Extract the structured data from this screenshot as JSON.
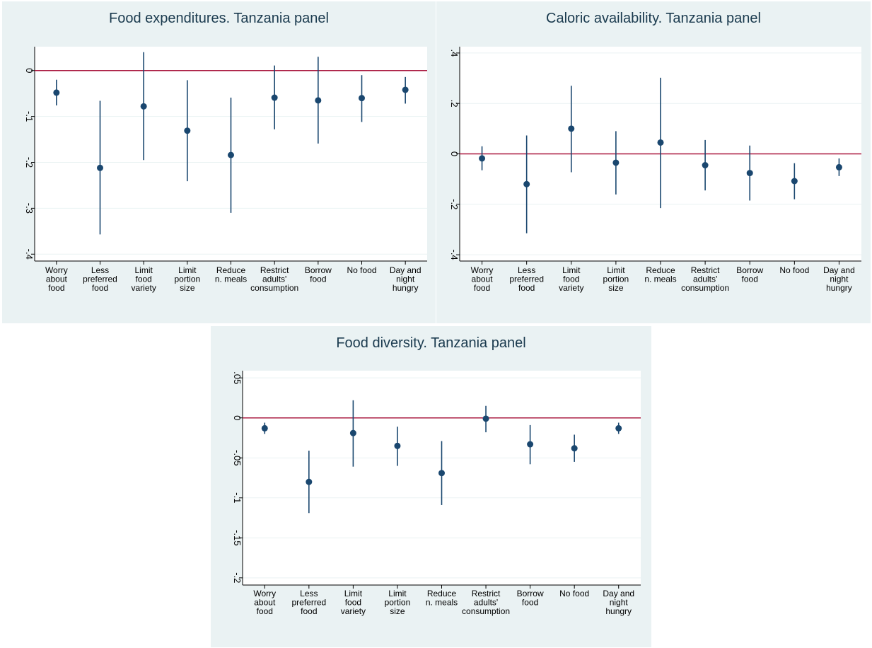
{
  "colors": {
    "panel_bg": "#eaf2f3",
    "plot_bg": "#ffffff",
    "marker": "#1a476f",
    "zero_line": "#a9183f",
    "grid": "#eaf2f3",
    "title": "#1a3a4e"
  },
  "chart_data": [
    {
      "type": "scatter",
      "subtype": "coefficient-plot",
      "title": "Food expenditures. Tanzania panel",
      "categories": [
        [
          "Worry",
          "about",
          "food"
        ],
        [
          "Less",
          "preferred",
          "food"
        ],
        [
          "Limit",
          "food",
          "variety"
        ],
        [
          "Limit",
          "portion",
          "size"
        ],
        [
          "Reduce",
          "n. meals"
        ],
        [
          "Restrict",
          "adults'",
          "consumption"
        ],
        [
          "Borrow",
          "food"
        ],
        [
          "No food"
        ],
        [
          "Day and",
          "night",
          "hungry"
        ]
      ],
      "estimates": [
        -0.048,
        -0.212,
        -0.078,
        -0.131,
        -0.184,
        -0.059,
        -0.065,
        -0.06,
        -0.042
      ],
      "ci_low": [
        -0.076,
        -0.357,
        -0.195,
        -0.241,
        -0.31,
        -0.128,
        -0.159,
        -0.112,
        -0.072
      ],
      "ci_high": [
        -0.02,
        -0.066,
        0.04,
        -0.021,
        -0.059,
        0.011,
        0.03,
        -0.01,
        -0.014
      ],
      "yticks": [
        0,
        -0.1,
        -0.2,
        -0.3,
        -0.4
      ],
      "ytick_labels": [
        "0",
        "-.1",
        "-.2",
        "-.3",
        "-.4"
      ],
      "ylim": [
        -0.415,
        0.052
      ],
      "reference_line": 0
    },
    {
      "type": "scatter",
      "subtype": "coefficient-plot",
      "title": "Caloric availability. Tanzania panel",
      "categories": [
        [
          "Worry",
          "about",
          "food"
        ],
        [
          "Less",
          "preferred",
          "food"
        ],
        [
          "Limit",
          "food",
          "variety"
        ],
        [
          "Limit",
          "portion",
          "size"
        ],
        [
          "Reduce",
          "n. meals"
        ],
        [
          "Restrict",
          "adults'",
          "consumption"
        ],
        [
          "Borrow",
          "food"
        ],
        [
          "No food"
        ],
        [
          "Day and",
          "night",
          "hungry"
        ]
      ],
      "estimates": [
        -0.018,
        -0.12,
        0.1,
        -0.035,
        0.045,
        -0.045,
        -0.076,
        -0.108,
        -0.053
      ],
      "ci_low": [
        -0.065,
        -0.315,
        -0.073,
        -0.161,
        -0.215,
        -0.145,
        -0.185,
        -0.18,
        -0.088
      ],
      "ci_high": [
        0.03,
        0.073,
        0.27,
        0.09,
        0.302,
        0.055,
        0.033,
        -0.037,
        -0.018
      ],
      "yticks": [
        0.4,
        0.2,
        0,
        -0.2,
        -0.4
      ],
      "ytick_labels": [
        ".4",
        ".2",
        "0",
        "-.2",
        "-.4"
      ],
      "ylim": [
        -0.425,
        0.425
      ],
      "reference_line": 0
    },
    {
      "type": "scatter",
      "subtype": "coefficient-plot",
      "title": "Food diversity. Tanzania panel",
      "categories": [
        [
          "Worry",
          "about",
          "food"
        ],
        [
          "Less",
          "preferred",
          "food"
        ],
        [
          "Limit",
          "food",
          "variety"
        ],
        [
          "Limit",
          "portion",
          "size"
        ],
        [
          "Reduce",
          "n. meals"
        ],
        [
          "Restrict",
          "adults'",
          "consumption"
        ],
        [
          "Borrow",
          "food"
        ],
        [
          "No food"
        ],
        [
          "Day and",
          "night",
          "hungry"
        ]
      ],
      "estimates": [
        -0.013,
        -0.08,
        -0.019,
        -0.035,
        -0.069,
        -0.001,
        -0.033,
        -0.038,
        -0.013
      ],
      "ci_low": [
        -0.02,
        -0.119,
        -0.061,
        -0.06,
        -0.109,
        -0.018,
        -0.058,
        -0.055,
        -0.02
      ],
      "ci_high": [
        -0.006,
        -0.041,
        0.022,
        -0.011,
        -0.029,
        0.015,
        -0.009,
        -0.021,
        -0.006
      ],
      "yticks": [
        0.05,
        0,
        -0.05,
        -0.1,
        -0.15,
        -0.2
      ],
      "ytick_labels": [
        ".05",
        "0",
        "-.05",
        "-.1",
        "-.15",
        "-.2"
      ],
      "ylim": [
        -0.209,
        0.059
      ],
      "reference_line": 0
    }
  ]
}
